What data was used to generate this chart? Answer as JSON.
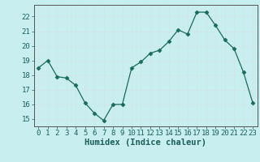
{
  "x": [
    0,
    1,
    2,
    3,
    4,
    5,
    6,
    7,
    8,
    9,
    10,
    11,
    12,
    13,
    14,
    15,
    16,
    17,
    18,
    19,
    20,
    21,
    22,
    23
  ],
  "y": [
    18.5,
    19.0,
    17.9,
    17.8,
    17.3,
    16.1,
    15.4,
    14.9,
    16.0,
    16.0,
    18.5,
    18.9,
    19.5,
    19.7,
    20.3,
    21.1,
    20.8,
    22.3,
    22.3,
    21.4,
    20.4,
    19.8,
    18.2,
    16.1
  ],
  "xlabel": "Humidex (Indice chaleur)",
  "ylim": [
    14.5,
    22.8
  ],
  "xlim": [
    -0.5,
    23.5
  ],
  "yticks": [
    15,
    16,
    17,
    18,
    19,
    20,
    21,
    22
  ],
  "xticks": [
    0,
    1,
    2,
    3,
    4,
    5,
    6,
    7,
    8,
    9,
    10,
    11,
    12,
    13,
    14,
    15,
    16,
    17,
    18,
    19,
    20,
    21,
    22,
    23
  ],
  "line_color": "#1a6b5a",
  "marker_color": "#1a6b5a",
  "bg_color": "#c8eef0",
  "grid_color": "#b0d8da",
  "tick_label_fontsize": 6.5,
  "xlabel_fontsize": 7.5
}
